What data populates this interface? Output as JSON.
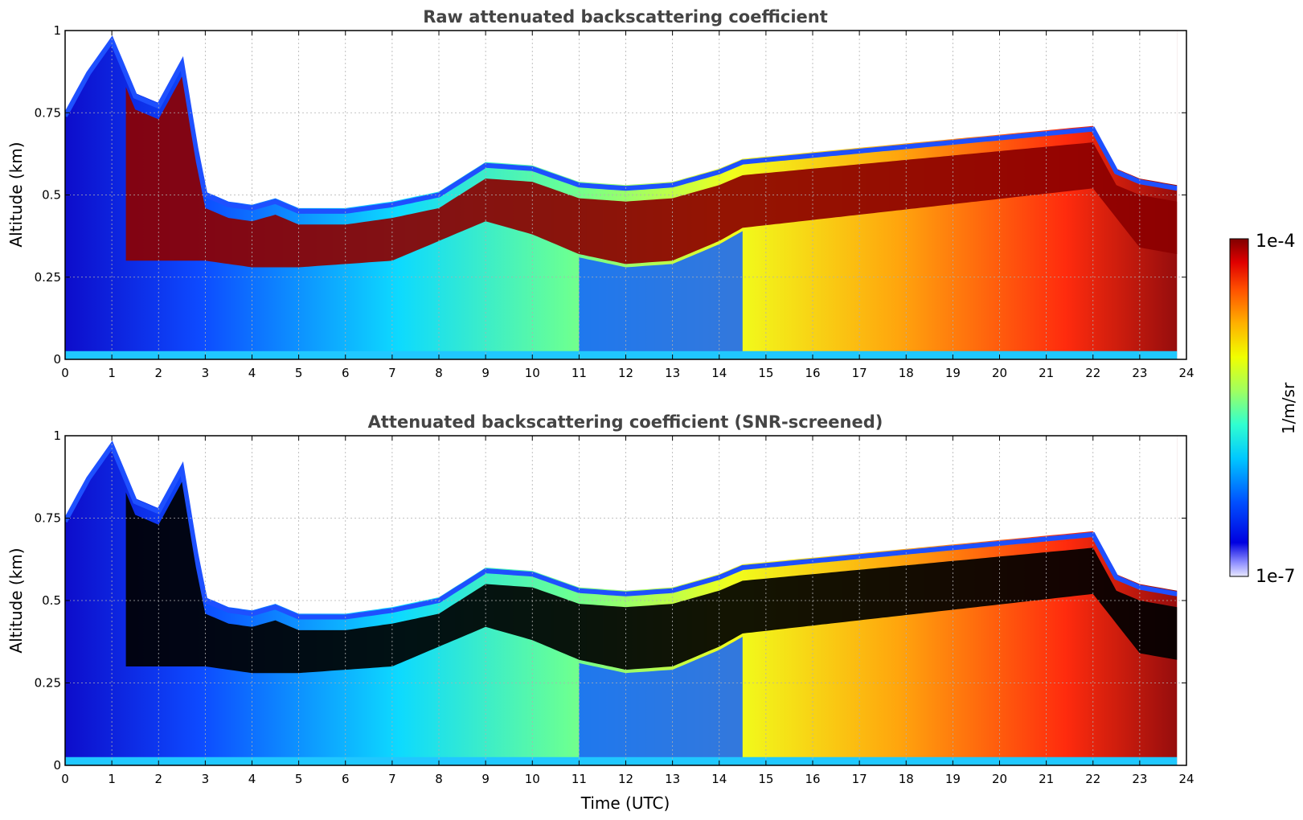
{
  "chart_data": [
    {
      "type": "heatmap",
      "title": "Raw attenuated backscattering coefficient",
      "ylabel": "Altitude (km)",
      "xlabel": "",
      "xlim": [
        0,
        24
      ],
      "ylim": [
        0,
        1
      ],
      "x_ticks": [
        "0",
        "1",
        "2",
        "3",
        "4",
        "5",
        "6",
        "7",
        "8",
        "9",
        "10",
        "11",
        "12",
        "13",
        "14",
        "15",
        "16",
        "17",
        "18",
        "19",
        "20",
        "21",
        "22",
        "23",
        "24"
      ],
      "y_ticks": [
        "0",
        "0.25",
        "0.5",
        "0.75",
        "1"
      ],
      "grid": true,
      "colormap": "jet",
      "layer_top_km": [
        [
          0.0,
          0.72
        ],
        [
          0.5,
          0.85
        ],
        [
          1.0,
          0.95
        ],
        [
          1.5,
          0.78
        ],
        [
          2.0,
          0.75
        ],
        [
          2.5,
          0.88
        ],
        [
          2.8,
          0.62
        ],
        [
          3.0,
          0.48
        ],
        [
          3.5,
          0.45
        ],
        [
          4.0,
          0.44
        ],
        [
          4.5,
          0.46
        ],
        [
          5.0,
          0.43
        ],
        [
          6.0,
          0.43
        ],
        [
          7.0,
          0.45
        ],
        [
          8.0,
          0.48
        ],
        [
          9.0,
          0.57
        ],
        [
          10.0,
          0.56
        ],
        [
          11.0,
          0.51
        ],
        [
          12.0,
          0.5
        ],
        [
          13.0,
          0.51
        ],
        [
          14.0,
          0.55
        ],
        [
          14.5,
          0.58
        ],
        [
          22.0,
          0.68
        ],
        [
          22.5,
          0.55
        ],
        [
          23.0,
          0.52
        ],
        [
          23.8,
          0.5
        ]
      ],
      "layer_base_km": [
        [
          1.3,
          0.3
        ],
        [
          3.0,
          0.3
        ],
        [
          4.0,
          0.28
        ],
        [
          5.0,
          0.28
        ],
        [
          7.0,
          0.3
        ],
        [
          9.0,
          0.42
        ],
        [
          10.0,
          0.38
        ],
        [
          11.0,
          0.32
        ],
        [
          12.0,
          0.29
        ],
        [
          13.0,
          0.3
        ],
        [
          14.0,
          0.36
        ],
        [
          14.5,
          0.4
        ],
        [
          22.0,
          0.52
        ],
        [
          23.0,
          0.34
        ],
        [
          23.8,
          0.32
        ]
      ],
      "clear_lower_interval_h": [
        11.0,
        14.5
      ]
    },
    {
      "type": "heatmap",
      "title": "Attenuated backscattering coefficient (SNR-screened)",
      "ylabel": "Altitude (km)",
      "xlabel": "Time (UTC)",
      "xlim": [
        0,
        24
      ],
      "ylim": [
        0,
        1
      ],
      "x_ticks": [
        "0",
        "1",
        "2",
        "3",
        "4",
        "5",
        "6",
        "7",
        "8",
        "9",
        "10",
        "11",
        "12",
        "13",
        "14",
        "15",
        "16",
        "17",
        "18",
        "19",
        "20",
        "21",
        "22",
        "23",
        "24"
      ],
      "y_ticks": [
        "0",
        "0.25",
        "0.5",
        "0.75",
        "1"
      ],
      "grid": true,
      "colormap": "jet",
      "saturated_color": "#000000"
    }
  ],
  "colorbar": {
    "max_label": "1e-4",
    "min_label": "1e-7",
    "unit_label": "1/m/sr"
  }
}
